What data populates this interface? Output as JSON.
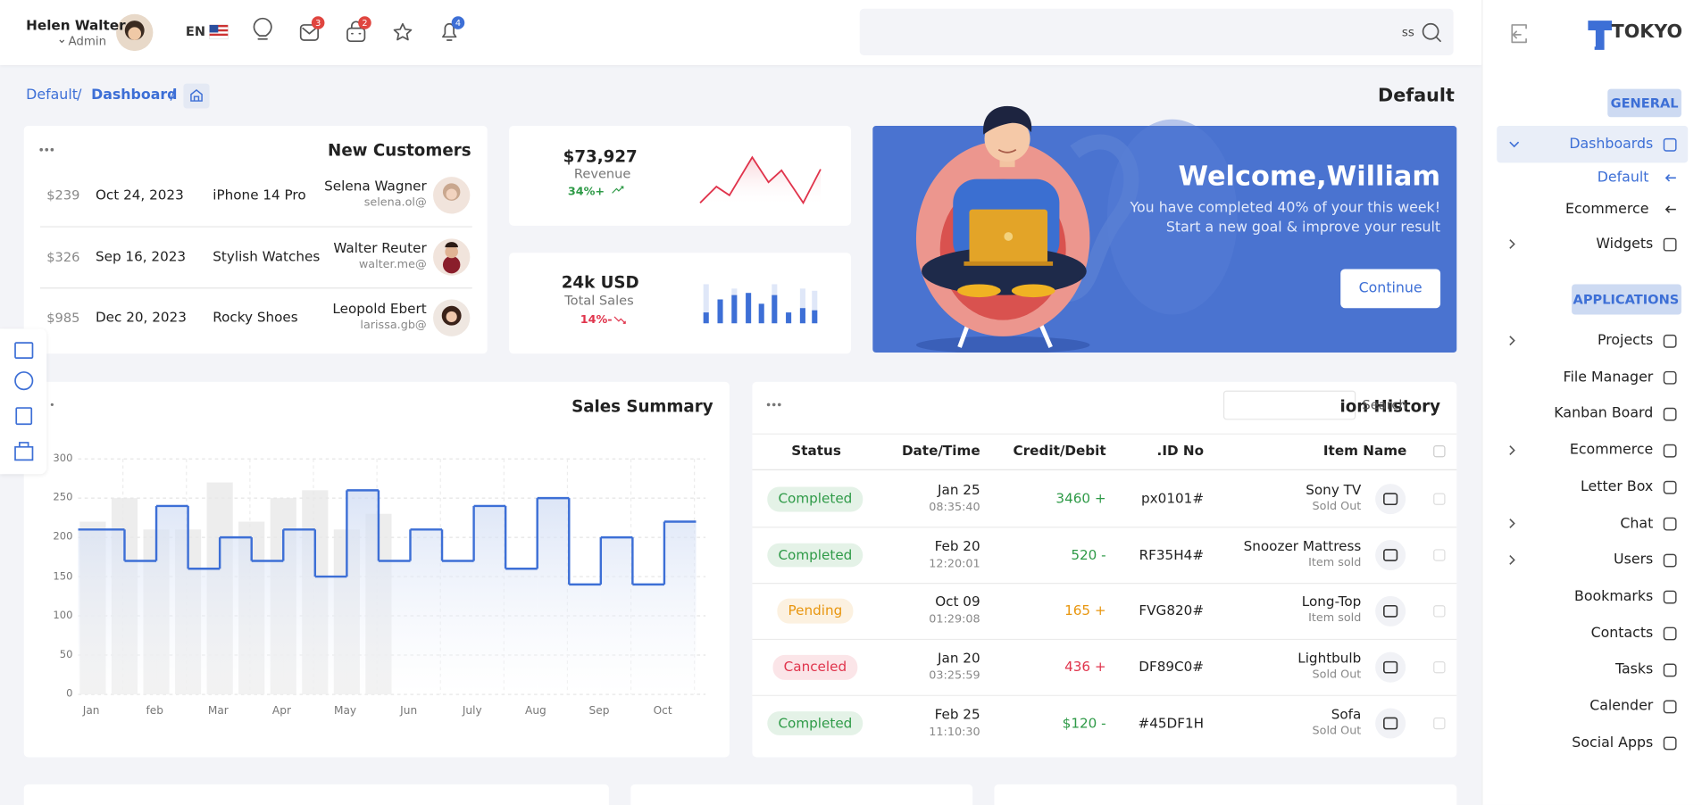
{
  "header": {
    "user_name": "Helen Walter",
    "user_role": "Admin",
    "language": "EN",
    "badges": [
      {
        "value": 3,
        "color": "#e0453f"
      },
      {
        "value": 2,
        "color": "#e0453f"
      },
      {
        "value": 4,
        "color": "#3d6fd6"
      }
    ],
    "search": "ss",
    "logo": "TOKYO"
  },
  "breadcrumb": {
    "items": [
      "Default",
      "Dashboard"
    ],
    "title": "Default"
  },
  "new_customers": {
    "title": "New Customers",
    "rows": [
      {
        "amount": "$239",
        "date": "Oct 24, 2023",
        "product": "iPhone 14 Pro",
        "name": "Selena Wagner",
        "email": "selena.ol@"
      },
      {
        "amount": "$326",
        "date": "Sep 16, 2023",
        "product": "Stylish Watches",
        "name": "Walter Reuter",
        "email": "walter.me@"
      },
      {
        "amount": "$985",
        "date": "Dec 20, 2023",
        "product": "Rocky Shoes",
        "name": "Leopold Ebert",
        "email": "larissa.gb@"
      }
    ]
  },
  "revenue": {
    "value": "$73,927",
    "label": "Revenue",
    "change": "34%+",
    "color": "#2e9a47"
  },
  "total_sales": {
    "value": "24k USD",
    "label": "Total Sales",
    "change": "14%-",
    "color": "#e0344c"
  },
  "welcome": {
    "title": "Welcome,William",
    "lines": [
      "You have completed 40% of your this week!",
      "Start a new goal & improve your result"
    ],
    "button": "Continue"
  },
  "sales_summary": {
    "title": "Sales Summary",
    "categories": [
      "Jan",
      "feb",
      "Mar",
      "Apr",
      "May",
      "Jun",
      "July",
      "Aug",
      "Sep",
      "Oct"
    ],
    "line_values": [
      210,
      170,
      240,
      160,
      200,
      170,
      210,
      150,
      260,
      170,
      210,
      170,
      240,
      160,
      250,
      140,
      200,
      140,
      220
    ],
    "bar_values": [
      220,
      250,
      210,
      210,
      270,
      220,
      250,
      260,
      210,
      230
    ],
    "line_color": "#3d6fd6",
    "bar_color": "#e8e8e8",
    "ylim": [
      0,
      300
    ],
    "yticks": [
      0,
      50,
      100,
      150,
      200,
      250,
      300
    ],
    "grid": true
  },
  "transactions": {
    "title": "ion History",
    "search_placeholder": "Search",
    "columns": [
      "Status",
      "Date/Time",
      "Credit/Debit",
      ".ID No",
      "Item Name"
    ],
    "rows": [
      {
        "status": "Completed",
        "date": "Jan 25",
        "time": "08:35:40",
        "amount": "3460 +",
        "id": "px0101#",
        "item": "Sony TV",
        "note": "Sold Out",
        "color": "#2e9a47"
      },
      {
        "status": "Completed",
        "date": "Feb 20",
        "time": "12:20:01",
        "amount": "520 -",
        "id": "RF35H4#",
        "item": "Snoozer Mattress",
        "note": "Item sold",
        "color": "#2e9a47"
      },
      {
        "status": "Pending",
        "date": "Oct 09",
        "time": "01:29:08",
        "amount": "165 +",
        "id": "FVG820#",
        "item": "Long-Top",
        "note": "Item sold",
        "color": "#e8960f"
      },
      {
        "status": "Canceled",
        "date": "Jan 20",
        "time": "03:25:59",
        "amount": "436 +",
        "id": "DF89C0#",
        "item": "Lightbulb",
        "note": "Sold Out",
        "color": "#e0344c"
      },
      {
        "status": "Completed",
        "date": "Feb 25",
        "time": "11:10:30",
        "amount": "$120 -",
        "id": "#45DF1H",
        "item": "Sofa",
        "note": "Sold Out",
        "color": "#2e9a47"
      }
    ]
  },
  "sidebar": {
    "sections": [
      {
        "title": "GENERAL",
        "items": [
          "Dashboards",
          "Default",
          "Ecommerce",
          "Widgets"
        ]
      },
      {
        "title": "APPLICATIONS",
        "items": [
          "Projects",
          "File Manager",
          "Kanban Board",
          "Ecommerce",
          "Letter Box",
          "Chat",
          "Users",
          "Bookmarks",
          "Contacts",
          "Tasks",
          "Calender",
          "Social Apps"
        ]
      }
    ]
  }
}
